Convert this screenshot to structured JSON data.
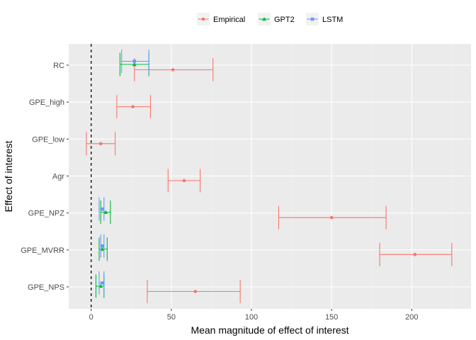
{
  "chart_data": {
    "type": "scatter",
    "xlabel": "Mean magnitude of effect of interest",
    "ylabel": "Effect of interest",
    "xlim": [
      -14,
      237
    ],
    "x_ticks": [
      0,
      50,
      100,
      150,
      200
    ],
    "categories": [
      "RC",
      "GPE_high",
      "GPE_low",
      "Agr",
      "GPE_NPZ",
      "GPE_MVRR",
      "GPE_NPS"
    ],
    "reference_line": {
      "x": 0,
      "style": "dashed"
    },
    "legend_position": "top",
    "grid": true,
    "series": [
      {
        "name": "Empirical",
        "color": "#F8766D",
        "marker": "circle",
        "points": [
          {
            "category": "RC",
            "value": 51,
            "lower": 27,
            "upper": 76
          },
          {
            "category": "GPE_high",
            "value": 26,
            "lower": 16,
            "upper": 37
          },
          {
            "category": "GPE_low",
            "value": 6,
            "lower": -3,
            "upper": 15
          },
          {
            "category": "Agr",
            "value": 58,
            "lower": 48,
            "upper": 68
          },
          {
            "category": "GPE_NPZ",
            "value": 150,
            "lower": 117,
            "upper": 184
          },
          {
            "category": "GPE_MVRR",
            "value": 202,
            "lower": 180,
            "upper": 225
          },
          {
            "category": "GPE_NPS",
            "value": 65,
            "lower": 35,
            "upper": 93
          }
        ]
      },
      {
        "name": "GPT2",
        "color": "#00BA38",
        "marker": "triangle",
        "points": [
          {
            "category": "RC",
            "value": 27,
            "lower": 18,
            "upper": 36
          },
          {
            "category": "GPE_NPZ",
            "value": 9,
            "lower": 6,
            "upper": 12
          },
          {
            "category": "GPE_MVRR",
            "value": 7,
            "lower": 5,
            "upper": 10
          },
          {
            "category": "GPE_NPS",
            "value": 6,
            "lower": 3,
            "upper": 8
          }
        ]
      },
      {
        "name": "LSTM",
        "color": "#619CFF",
        "marker": "square",
        "points": [
          {
            "category": "RC",
            "value": 27,
            "lower": 19,
            "upper": 36
          },
          {
            "category": "GPE_NPZ",
            "value": 7,
            "lower": 5,
            "upper": 8
          },
          {
            "category": "GPE_MVRR",
            "value": 7,
            "lower": 6,
            "upper": 8
          },
          {
            "category": "GPE_NPS",
            "value": 7,
            "lower": 5,
            "upper": 8
          }
        ]
      }
    ]
  }
}
